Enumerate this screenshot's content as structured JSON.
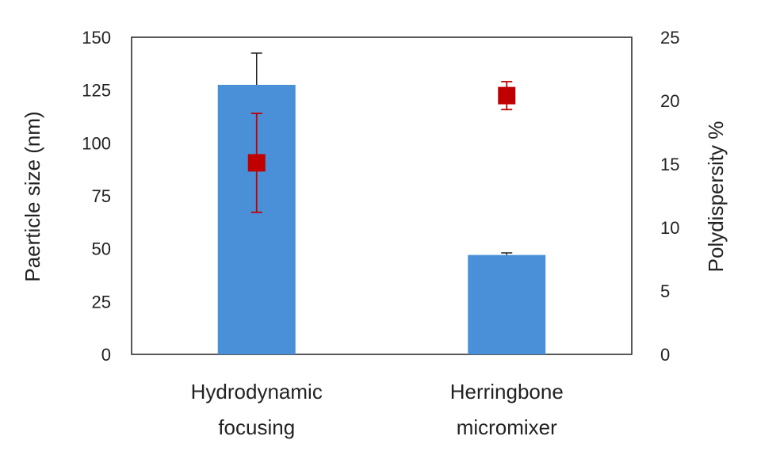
{
  "chart_data": {
    "type": "bar",
    "categories": [
      [
        "Hydrodynamic",
        "focusing"
      ],
      [
        "Herringbone",
        "micromixer"
      ]
    ],
    "ylabel": "Paerticle size (nm)",
    "y2label": "Polydispersity %",
    "ylim": [
      0,
      150
    ],
    "y2lim": [
      0,
      25
    ],
    "yticks": [
      "0",
      "25",
      "50",
      "75",
      "100",
      "125",
      "150"
    ],
    "y2ticks": [
      "0",
      "5",
      "10",
      "15",
      "20",
      "25"
    ],
    "grid": false,
    "legend": "none",
    "series": [
      {
        "kind": "bar",
        "axis": "left",
        "color": "#4a90d9",
        "values": [
          127.5,
          47
        ],
        "error_up": [
          15,
          1
        ]
      },
      {
        "kind": "marker",
        "axis": "right",
        "marker": "square",
        "color": "#c00000",
        "values": [
          15.1,
          20.4
        ],
        "error": [
          3.9,
          1.1
        ]
      }
    ]
  }
}
